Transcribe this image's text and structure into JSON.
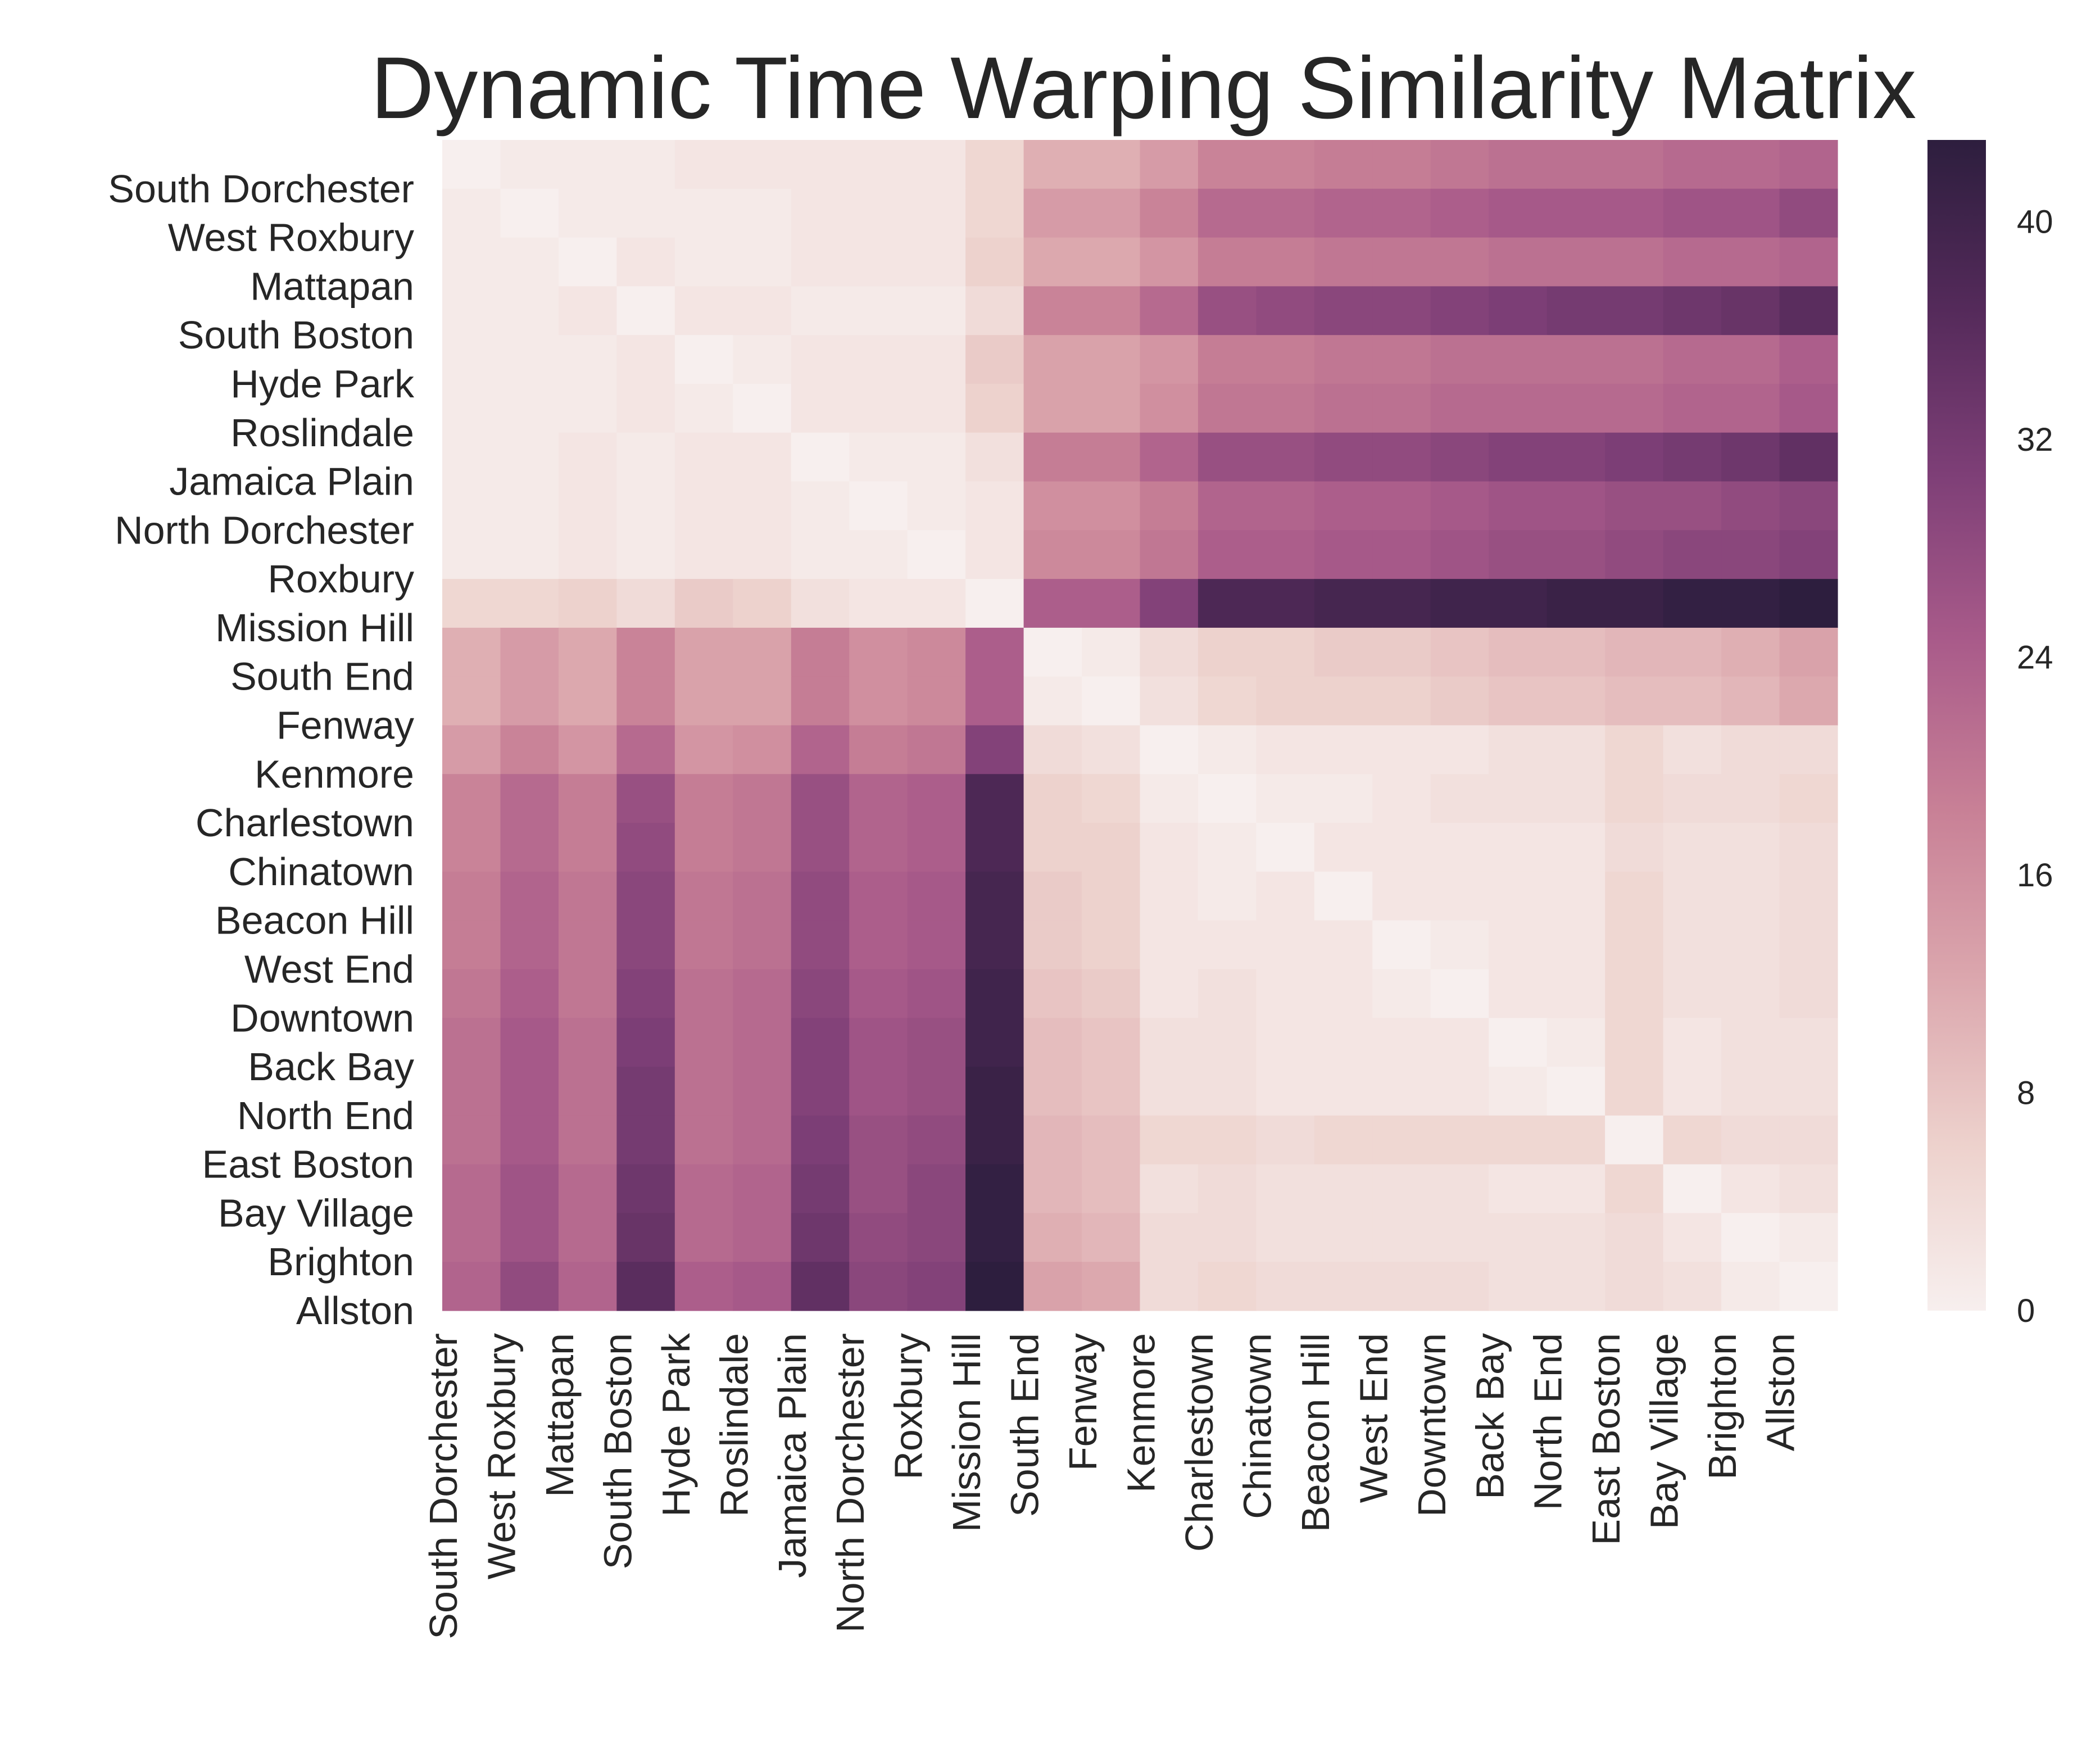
{
  "chart_data": {
    "type": "heatmap",
    "title": "Dynamic Time Warping Similarity Matrix",
    "xlabel": "",
    "ylabel": "",
    "labels": [
      "South Dorchester",
      "West Roxbury",
      "Mattapan",
      "South Boston",
      "Hyde Park",
      "Roslindale",
      "Jamaica Plain",
      "North Dorchester",
      "Roxbury",
      "Mission Hill",
      "South End",
      "Fenway",
      "Kenmore",
      "Charlestown",
      "Chinatown",
      "Beacon Hill",
      "West End",
      "Downtown",
      "Back Bay",
      "North End",
      "East Boston",
      "Bay Village",
      "Brighton",
      "Allston"
    ],
    "values": [
      [
        0,
        1,
        1,
        1,
        2,
        2,
        2,
        2,
        2,
        5,
        11,
        11,
        14,
        18,
        18,
        19,
        19,
        20,
        21,
        21,
        21,
        22,
        22,
        23
      ],
      [
        1,
        0,
        1,
        1,
        1,
        1,
        2,
        2,
        2,
        5,
        14,
        14,
        18,
        22,
        22,
        23,
        23,
        24,
        25,
        25,
        25,
        26,
        26,
        28
      ],
      [
        1,
        1,
        0,
        2,
        1,
        1,
        2,
        2,
        2,
        6,
        12,
        12,
        15,
        19,
        19,
        20,
        20,
        20,
        21,
        21,
        21,
        22,
        22,
        23
      ],
      [
        1,
        1,
        2,
        0,
        2,
        2,
        1,
        1,
        1,
        4,
        18,
        18,
        22,
        27,
        28,
        29,
        29,
        30,
        31,
        32,
        32,
        33,
        34,
        36
      ],
      [
        1,
        1,
        1,
        2,
        0,
        1,
        2,
        2,
        2,
        7,
        13,
        13,
        15,
        19,
        19,
        20,
        20,
        21,
        21,
        21,
        21,
        22,
        22,
        24
      ],
      [
        1,
        1,
        1,
        2,
        1,
        0,
        2,
        2,
        2,
        6,
        13,
        13,
        16,
        20,
        20,
        21,
        21,
        22,
        22,
        22,
        22,
        23,
        23,
        25
      ],
      [
        1,
        1,
        2,
        1,
        2,
        2,
        0,
        1,
        1,
        3,
        19,
        19,
        23,
        27,
        27,
        28,
        28,
        29,
        30,
        30,
        31,
        32,
        33,
        35
      ],
      [
        1,
        1,
        2,
        1,
        2,
        2,
        1,
        0,
        1,
        2,
        16,
        16,
        19,
        23,
        23,
        24,
        24,
        25,
        26,
        26,
        27,
        27,
        28,
        29
      ],
      [
        1,
        1,
        2,
        1,
        2,
        2,
        1,
        1,
        0,
        2,
        17,
        17,
        20,
        24,
        24,
        25,
        25,
        26,
        27,
        27,
        28,
        29,
        29,
        30
      ],
      [
        5,
        5,
        6,
        4,
        7,
        6,
        3,
        2,
        2,
        0,
        24,
        24,
        30,
        38,
        38,
        39,
        39,
        40,
        40,
        41,
        41,
        42,
        42,
        43
      ],
      [
        11,
        14,
        12,
        18,
        13,
        13,
        19,
        16,
        17,
        24,
        0,
        1,
        4,
        6,
        6,
        7,
        7,
        8,
        9,
        9,
        10,
        10,
        11,
        13
      ],
      [
        11,
        14,
        12,
        18,
        13,
        13,
        19,
        16,
        17,
        24,
        1,
        0,
        3,
        5,
        6,
        6,
        6,
        7,
        8,
        8,
        9,
        9,
        10,
        12
      ],
      [
        14,
        18,
        15,
        22,
        15,
        16,
        23,
        19,
        20,
        30,
        4,
        3,
        0,
        1,
        2,
        2,
        2,
        2,
        3,
        3,
        5,
        3,
        4,
        4
      ],
      [
        18,
        22,
        19,
        27,
        19,
        20,
        27,
        23,
        24,
        38,
        6,
        5,
        1,
        0,
        1,
        1,
        2,
        3,
        3,
        3,
        5,
        4,
        4,
        5
      ],
      [
        18,
        22,
        19,
        28,
        19,
        20,
        27,
        23,
        24,
        38,
        6,
        6,
        2,
        1,
        0,
        2,
        2,
        2,
        2,
        2,
        4,
        3,
        3,
        4
      ],
      [
        19,
        23,
        20,
        29,
        20,
        21,
        28,
        24,
        25,
        39,
        7,
        6,
        2,
        1,
        2,
        0,
        2,
        2,
        2,
        2,
        5,
        3,
        3,
        4
      ],
      [
        19,
        23,
        20,
        29,
        20,
        21,
        28,
        24,
        25,
        39,
        7,
        6,
        2,
        2,
        2,
        2,
        0,
        1,
        2,
        2,
        5,
        3,
        3,
        4
      ],
      [
        20,
        24,
        20,
        30,
        21,
        22,
        29,
        25,
        26,
        40,
        8,
        7,
        2,
        3,
        2,
        2,
        1,
        0,
        2,
        2,
        5,
        3,
        3,
        4
      ],
      [
        21,
        25,
        21,
        31,
        21,
        22,
        30,
        26,
        27,
        40,
        9,
        8,
        3,
        3,
        2,
        2,
        2,
        2,
        0,
        1,
        5,
        2,
        3,
        3
      ],
      [
        21,
        25,
        21,
        32,
        21,
        22,
        30,
        26,
        27,
        41,
        9,
        8,
        3,
        3,
        2,
        2,
        2,
        2,
        1,
        0,
        5,
        2,
        3,
        3
      ],
      [
        21,
        25,
        21,
        32,
        21,
        22,
        31,
        27,
        28,
        41,
        10,
        9,
        5,
        5,
        4,
        5,
        5,
        5,
        5,
        5,
        0,
        5,
        4,
        4
      ],
      [
        22,
        26,
        22,
        33,
        22,
        23,
        32,
        27,
        29,
        42,
        10,
        9,
        3,
        4,
        3,
        3,
        3,
        3,
        2,
        2,
        5,
        0,
        2,
        3
      ],
      [
        22,
        26,
        22,
        34,
        22,
        23,
        33,
        28,
        29,
        42,
        11,
        10,
        4,
        4,
        3,
        3,
        3,
        3,
        3,
        3,
        4,
        2,
        0,
        1
      ],
      [
        23,
        28,
        23,
        36,
        24,
        25,
        35,
        29,
        30,
        43,
        13,
        12,
        4,
        5,
        4,
        4,
        4,
        4,
        3,
        3,
        4,
        3,
        1,
        0
      ]
    ],
    "vmin": 0,
    "vmax": 43,
    "colorbar_ticks": [
      0,
      8,
      16,
      24,
      32,
      40
    ],
    "colormap": [
      "#f7efee",
      "#edd1cc",
      "#dba6ad",
      "#c88096",
      "#a95b8a",
      "#7e3f77",
      "#542a5a",
      "#2d1e3e"
    ]
  }
}
